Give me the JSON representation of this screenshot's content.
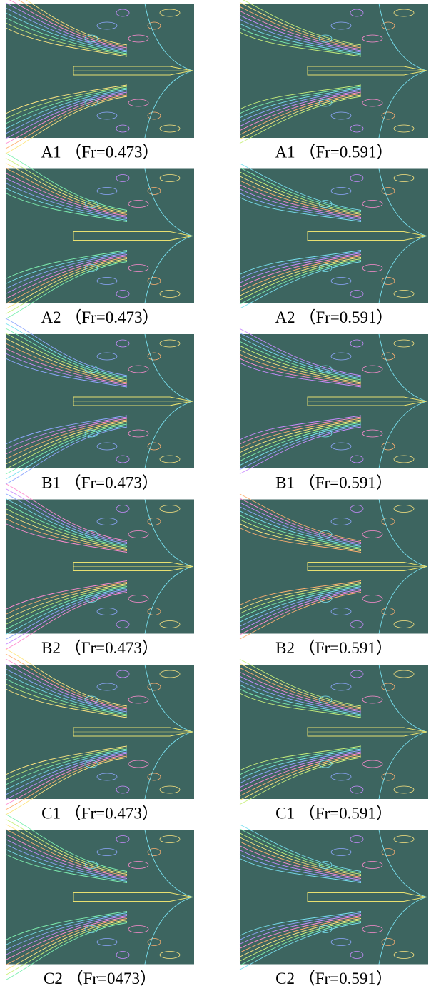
{
  "figure": {
    "panels": [
      {
        "caption": "A1 （Fr=0.473）"
      },
      {
        "caption": "A1 （Fr=0.591）"
      },
      {
        "caption": "A2 （Fr=0.473）"
      },
      {
        "caption": "A2 （Fr=0.591）"
      },
      {
        "caption": "B1 （Fr=0.473）"
      },
      {
        "caption": "B1 （Fr=0.591）"
      },
      {
        "caption": "B2 （Fr=0.473）"
      },
      {
        "caption": "B2 （Fr=0.591）"
      },
      {
        "caption": "C1 （Fr=0.473）"
      },
      {
        "caption": "C1 （Fr=0.591）"
      },
      {
        "caption": "C2 （Fr=0473）"
      },
      {
        "caption": "C2 （Fr=0.591）"
      }
    ]
  }
}
